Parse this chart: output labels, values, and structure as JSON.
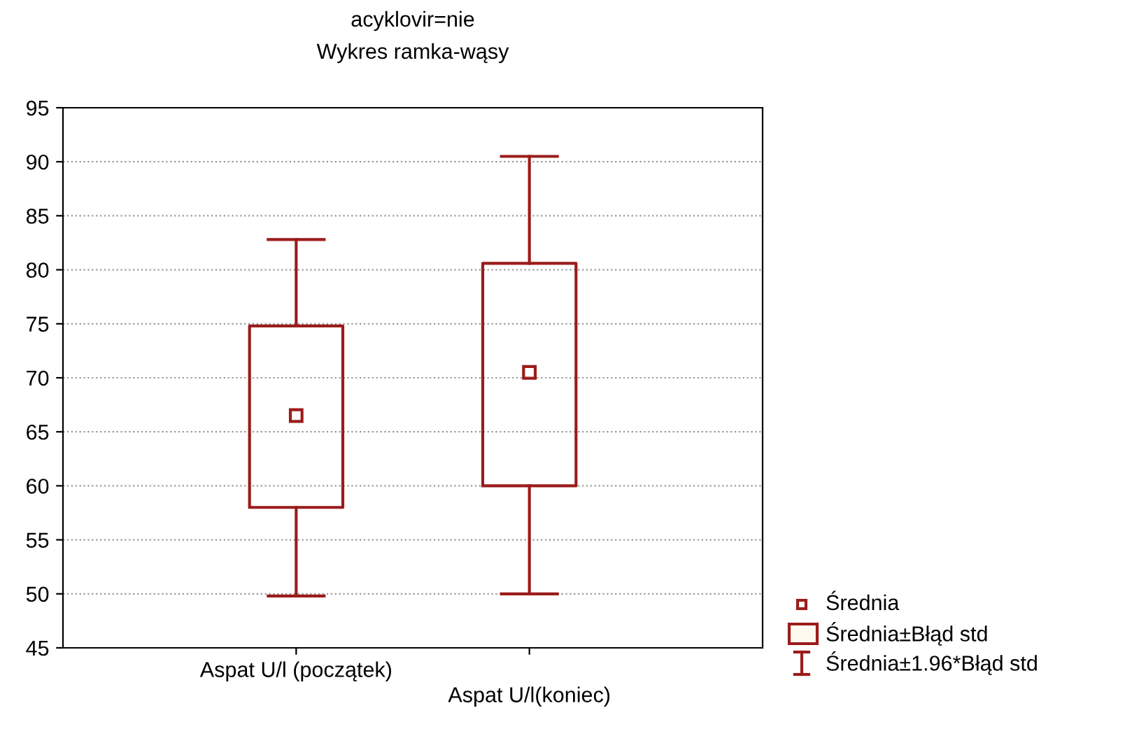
{
  "chart_data": {
    "type": "box",
    "title": "acyklovir=nie",
    "subtitle": "Wykres ramka-wąsy",
    "categories": [
      "Aspat U/l (początek)",
      "Aspat U/l(koniec)"
    ],
    "color": "#9b1c1c",
    "boxes": [
      {
        "low": 49.8,
        "q1": 58.0,
        "median": 66.5,
        "q3": 74.8,
        "high": 82.8
      },
      {
        "low": 50.0,
        "q1": 60.0,
        "median": 70.5,
        "q3": 80.6,
        "high": 90.5
      }
    ],
    "ylim": [
      45,
      95
    ],
    "yticks": [
      45,
      50,
      55,
      60,
      65,
      70,
      75,
      80,
      85,
      90,
      95
    ],
    "grid": "y",
    "annotations": [
      "Średnia",
      "Średnia±Błąd std",
      "Średnia±1.96*Błąd std"
    ]
  }
}
